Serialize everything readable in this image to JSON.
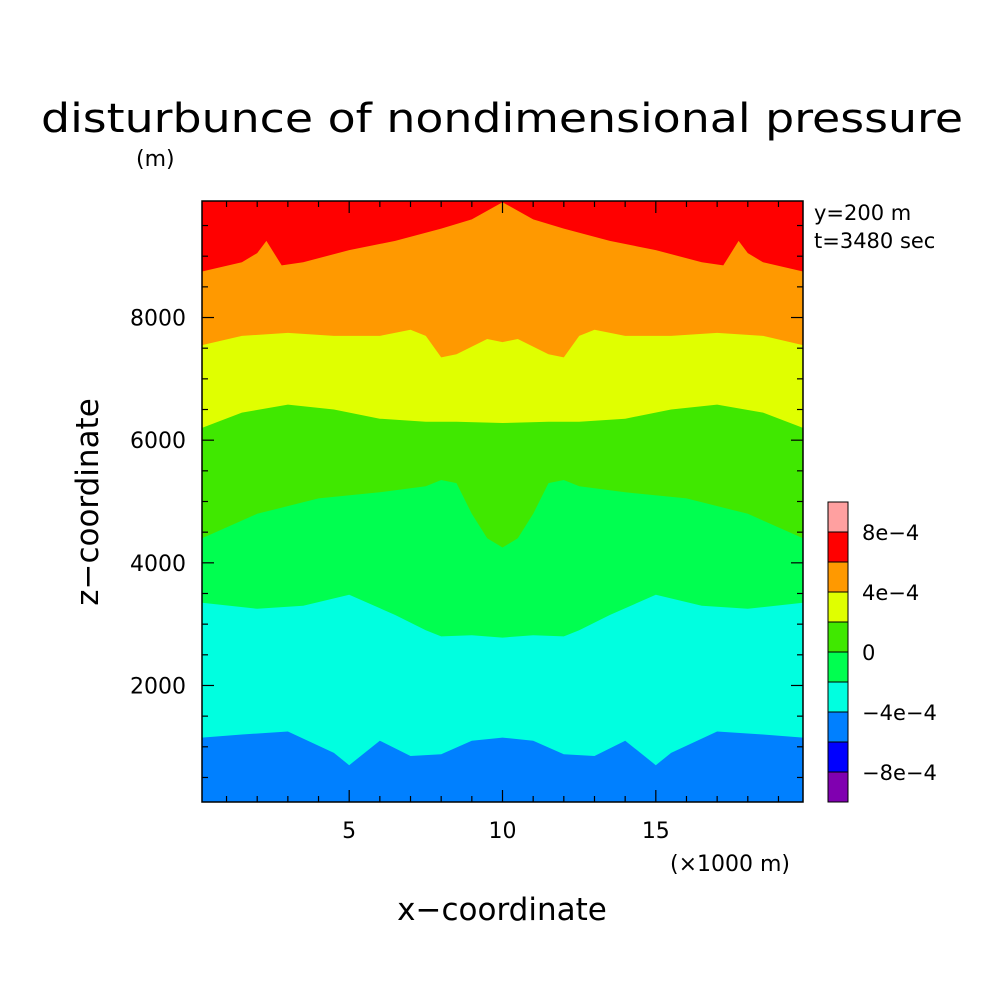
{
  "chart_data": {
    "type": "heatmap",
    "subtype": "filled-contour",
    "title": "disturbunce of nondimensional pressure",
    "units": "(m)",
    "xlabel": "x−coordinate",
    "ylabel": "z−coordinate",
    "x_unit_label": "(×1000 m)",
    "annotations": [
      "y=200 m",
      "t=3480 sec"
    ],
    "xlim": [
      0.2,
      19.8
    ],
    "ylim": [
      100,
      9900
    ],
    "x_ticks": [
      {
        "value": 5,
        "label": "5"
      },
      {
        "value": 10,
        "label": "10"
      },
      {
        "value": 15,
        "label": "15"
      }
    ],
    "y_ticks": [
      {
        "value": 2000,
        "label": "2000"
      },
      {
        "value": 4000,
        "label": "4000"
      },
      {
        "value": 6000,
        "label": "6000"
      },
      {
        "value": 8000,
        "label": "8000"
      }
    ],
    "colorbar": {
      "levels": [
        -0.0012,
        -0.0008,
        -0.0006,
        -0.0004,
        -0.0002,
        0,
        0.0002,
        0.0004,
        0.0006,
        0.0008,
        0.0012
      ],
      "colors": [
        "#8000b0",
        "#0000ff",
        "#0080ff",
        "#00ffe0",
        "#00ff50",
        "#40e800",
        "#e0ff00",
        "#ff9900",
        "#ff0000",
        "#ffa0a0"
      ],
      "tick_labels": [
        {
          "value": -0.0008,
          "label": "−8e−4"
        },
        {
          "value": -0.0004,
          "label": "−4e−4"
        },
        {
          "value": 0,
          "label": "0"
        },
        {
          "value": 0.0004,
          "label": "4e−4"
        },
        {
          "value": 0.0008,
          "label": "8e−4"
        }
      ]
    },
    "bands": [
      {
        "range": [
          -0.0006,
          -0.0004
        ],
        "color": "#0080ff",
        "upper_boundary": [
          [
            0.2,
            1150
          ],
          [
            1.5,
            1200
          ],
          [
            3.0,
            1250
          ],
          [
            4.5,
            900
          ],
          [
            5.0,
            700
          ],
          [
            6.0,
            1100
          ],
          [
            7.0,
            850
          ],
          [
            8.0,
            880
          ],
          [
            9.0,
            1100
          ],
          [
            10.0,
            1150
          ],
          [
            11.0,
            1100
          ],
          [
            12.0,
            880
          ],
          [
            13.0,
            850
          ],
          [
            14.0,
            1100
          ],
          [
            15.0,
            700
          ],
          [
            15.5,
            900
          ],
          [
            17.0,
            1250
          ],
          [
            18.5,
            1200
          ],
          [
            19.8,
            1150
          ]
        ]
      },
      {
        "range": [
          -0.0004,
          -0.0002
        ],
        "color": "#00ffe0",
        "upper_boundary": [
          [
            0.2,
            3350
          ],
          [
            2.0,
            3250
          ],
          [
            3.5,
            3300
          ],
          [
            5.0,
            3480
          ],
          [
            6.5,
            3150
          ],
          [
            7.5,
            2900
          ],
          [
            8.0,
            2800
          ],
          [
            9.0,
            2820
          ],
          [
            10.0,
            2780
          ],
          [
            11.0,
            2820
          ],
          [
            12.0,
            2800
          ],
          [
            12.5,
            2900
          ],
          [
            13.5,
            3150
          ],
          [
            15.0,
            3480
          ],
          [
            16.5,
            3300
          ],
          [
            18.0,
            3250
          ],
          [
            19.8,
            3350
          ]
        ]
      },
      {
        "range": [
          -0.0002,
          0
        ],
        "color": "#00ff50",
        "upper_boundary": [
          [
            0.2,
            4400
          ],
          [
            2.0,
            4800
          ],
          [
            4.0,
            5050
          ],
          [
            6.0,
            5150
          ],
          [
            7.5,
            5250
          ],
          [
            8.0,
            5350
          ],
          [
            8.5,
            5300
          ],
          [
            9.0,
            4800
          ],
          [
            9.5,
            4400
          ],
          [
            10.0,
            4250
          ],
          [
            10.5,
            4400
          ],
          [
            11.0,
            4800
          ],
          [
            11.5,
            5300
          ],
          [
            12.0,
            5350
          ],
          [
            12.5,
            5250
          ],
          [
            14.0,
            5150
          ],
          [
            16.0,
            5050
          ],
          [
            18.0,
            4800
          ],
          [
            19.8,
            4400
          ]
        ]
      },
      {
        "range": [
          0,
          0.0002
        ],
        "color": "#40e800",
        "upper_boundary": [
          [
            0.2,
            6200
          ],
          [
            1.5,
            6450
          ],
          [
            3.0,
            6580
          ],
          [
            4.5,
            6500
          ],
          [
            6.0,
            6350
          ],
          [
            7.5,
            6300
          ],
          [
            8.5,
            6300
          ],
          [
            10.0,
            6280
          ],
          [
            11.5,
            6300
          ],
          [
            12.5,
            6300
          ],
          [
            14.0,
            6350
          ],
          [
            15.5,
            6500
          ],
          [
            17.0,
            6580
          ],
          [
            18.5,
            6450
          ],
          [
            19.8,
            6200
          ]
        ]
      },
      {
        "range": [
          0.0002,
          0.0004
        ],
        "color": "#e0ff00",
        "upper_boundary": [
          [
            0.2,
            7550
          ],
          [
            1.5,
            7700
          ],
          [
            3.0,
            7750
          ],
          [
            4.5,
            7700
          ],
          [
            6.0,
            7700
          ],
          [
            7.0,
            7800
          ],
          [
            7.5,
            7700
          ],
          [
            8.0,
            7350
          ],
          [
            8.5,
            7400
          ],
          [
            9.5,
            7650
          ],
          [
            10.0,
            7600
          ],
          [
            10.5,
            7650
          ],
          [
            11.5,
            7400
          ],
          [
            12.0,
            7350
          ],
          [
            12.5,
            7700
          ],
          [
            13.0,
            7800
          ],
          [
            14.0,
            7700
          ],
          [
            15.5,
            7700
          ],
          [
            17.0,
            7750
          ],
          [
            18.5,
            7700
          ],
          [
            19.8,
            7550
          ]
        ]
      },
      {
        "range": [
          0.0004,
          0.0006
        ],
        "color": "#ff9900",
        "upper_boundary": [
          [
            0.2,
            8750
          ],
          [
            1.5,
            8900
          ],
          [
            2.0,
            9050
          ],
          [
            2.3,
            9250
          ],
          [
            2.8,
            8850
          ],
          [
            3.5,
            8900
          ],
          [
            5.0,
            9100
          ],
          [
            6.5,
            9250
          ],
          [
            8.0,
            9450
          ],
          [
            9.0,
            9600
          ],
          [
            10.0,
            9880
          ],
          [
            11.0,
            9600
          ],
          [
            12.0,
            9450
          ],
          [
            13.5,
            9250
          ],
          [
            15.0,
            9100
          ],
          [
            16.5,
            8900
          ],
          [
            17.2,
            8850
          ],
          [
            17.7,
            9250
          ],
          [
            18.0,
            9050
          ],
          [
            18.5,
            8900
          ],
          [
            19.8,
            8750
          ]
        ]
      },
      {
        "range": [
          0.0006,
          0.0008
        ],
        "color": "#ff0000",
        "upper_boundary": [
          [
            0.2,
            9900
          ],
          [
            19.8,
            9900
          ]
        ]
      }
    ]
  }
}
